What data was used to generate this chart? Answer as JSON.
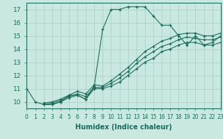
{
  "xlabel": "Humidex (Indice chaleur)",
  "bg_color": "#c8e8e0",
  "grid_color": "#a8ccc8",
  "line_color": "#1a6b5a",
  "xmin": 0,
  "xmax": 23,
  "ymin": 9.5,
  "ymax": 17.5,
  "yticks": [
    10,
    11,
    12,
    13,
    14,
    15,
    16,
    17
  ],
  "xticks": [
    0,
    1,
    2,
    3,
    4,
    5,
    6,
    7,
    8,
    9,
    10,
    11,
    12,
    13,
    14,
    15,
    16,
    17,
    18,
    19,
    20,
    21,
    22,
    23
  ],
  "lines": [
    {
      "x": [
        0,
        1,
        2,
        3,
        4,
        5,
        6,
        7,
        8,
        9,
        10,
        11,
        12,
        13,
        14,
        15,
        16,
        17,
        18,
        19,
        20,
        21,
        22,
        23
      ],
      "y": [
        11.0,
        10.0,
        9.8,
        9.8,
        10.0,
        10.5,
        10.5,
        10.2,
        11.2,
        15.5,
        17.0,
        17.0,
        17.2,
        17.2,
        17.2,
        16.5,
        15.8,
        15.8,
        15.0,
        14.3,
        15.0,
        14.3,
        14.5,
        15.0
      ]
    },
    {
      "x": [
        2,
        3,
        4,
        5,
        6,
        7,
        8,
        9,
        10,
        11,
        12,
        13,
        14,
        15,
        16,
        17,
        18,
        19,
        20,
        21,
        22,
        23
      ],
      "y": [
        9.8,
        9.8,
        10.0,
        10.3,
        10.5,
        10.2,
        11.0,
        11.0,
        11.2,
        11.5,
        12.0,
        12.5,
        13.0,
        13.3,
        13.8,
        14.0,
        14.3,
        14.5,
        14.5,
        14.3,
        14.3,
        14.5
      ]
    },
    {
      "x": [
        2,
        3,
        4,
        5,
        6,
        7,
        8,
        9,
        10,
        11,
        12,
        13,
        14,
        15,
        16,
        17,
        18,
        19,
        20,
        21,
        22,
        23
      ],
      "y": [
        9.8,
        9.9,
        10.1,
        10.4,
        10.6,
        10.4,
        11.1,
        11.1,
        11.4,
        11.8,
        12.3,
        12.9,
        13.4,
        13.8,
        14.2,
        14.4,
        14.7,
        14.9,
        14.8,
        14.7,
        14.7,
        14.9
      ]
    },
    {
      "x": [
        2,
        3,
        4,
        5,
        6,
        7,
        8,
        9,
        10,
        11,
        12,
        13,
        14,
        15,
        16,
        17,
        18,
        19,
        20,
        21,
        22,
        23
      ],
      "y": [
        9.9,
        10.0,
        10.2,
        10.5,
        10.8,
        10.6,
        11.3,
        11.2,
        11.6,
        12.1,
        12.6,
        13.2,
        13.8,
        14.2,
        14.6,
        14.8,
        15.1,
        15.2,
        15.2,
        15.0,
        15.0,
        15.2
      ]
    }
  ]
}
